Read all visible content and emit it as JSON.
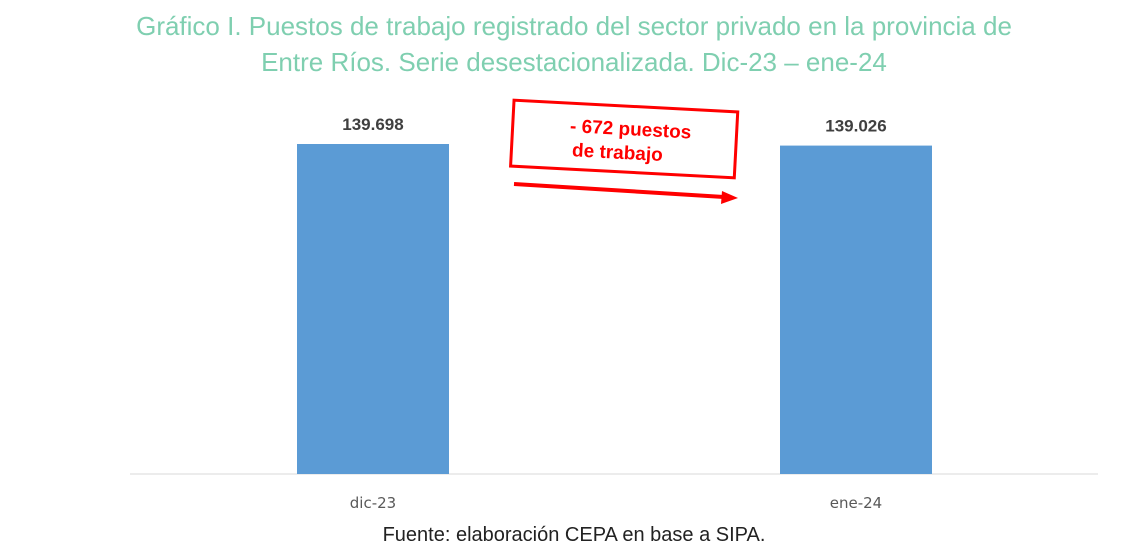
{
  "chart_data": {
    "type": "bar",
    "title_lines": [
      "Gráfico I. Puestos de trabajo registrado del sector privado en la provincia de",
      "Entre Ríos. Serie desestacionalizada. Dic-23 – ene-24"
    ],
    "categories": [
      "dic-23",
      "ene-24"
    ],
    "values": [
      139698,
      139026
    ],
    "data_labels": [
      "139.698",
      "139.026"
    ],
    "bar_color": "#5b9bd5",
    "annotation": {
      "lines": [
        "-  672 puestos",
        "de trabajo"
      ],
      "color": "#ff0000"
    },
    "source": "Fuente: elaboración CEPA en base a SIPA."
  }
}
